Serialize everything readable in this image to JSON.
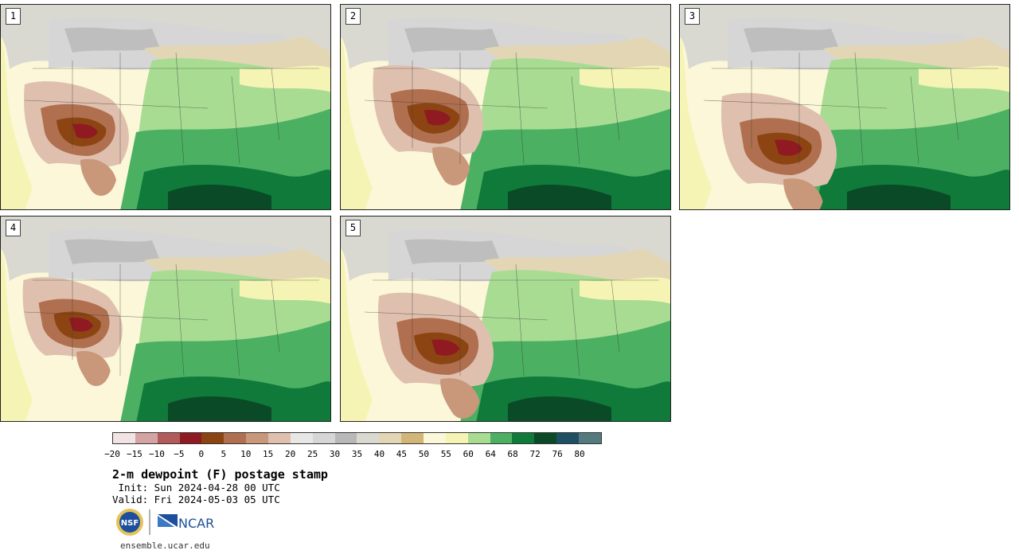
{
  "panels": [
    {
      "label": "1"
    },
    {
      "label": "2"
    },
    {
      "label": "3"
    },
    {
      "label": "4"
    },
    {
      "label": "5"
    }
  ],
  "colorbar": {
    "colors": [
      "#f2e4e4",
      "#d4a3a3",
      "#b35b5b",
      "#8f1a22",
      "#8c4512",
      "#b07050",
      "#c9977a",
      "#dfc0ae",
      "#e9e6e6",
      "#d7d6d6",
      "#b8b8b8",
      "#d9d9d2",
      "#e2d6b4",
      "#d2b678",
      "#fbf7d8",
      "#f6f4b4",
      "#a8dc93",
      "#4cb063",
      "#0f7a3a",
      "#0a4a26",
      "#1d5063",
      "#537b7f"
    ],
    "ticks": [
      "−20",
      "−15",
      "−10",
      "−5",
      "0",
      "5",
      "10",
      "15",
      "20",
      "25",
      "30",
      "35",
      "40",
      "45",
      "50",
      "55",
      "60",
      "64",
      "68",
      "72",
      "76",
      "80"
    ]
  },
  "title": "2-m dewpoint (F) postage stamp",
  "init": " Init: Sun 2024-04-28 00 UTC",
  "valid": "Valid: Fri 2024-05-03 05 UTC",
  "logos": {
    "nsf": "NSF",
    "ncar": "NCAR"
  },
  "website": "ensemble.ucar.edu"
}
